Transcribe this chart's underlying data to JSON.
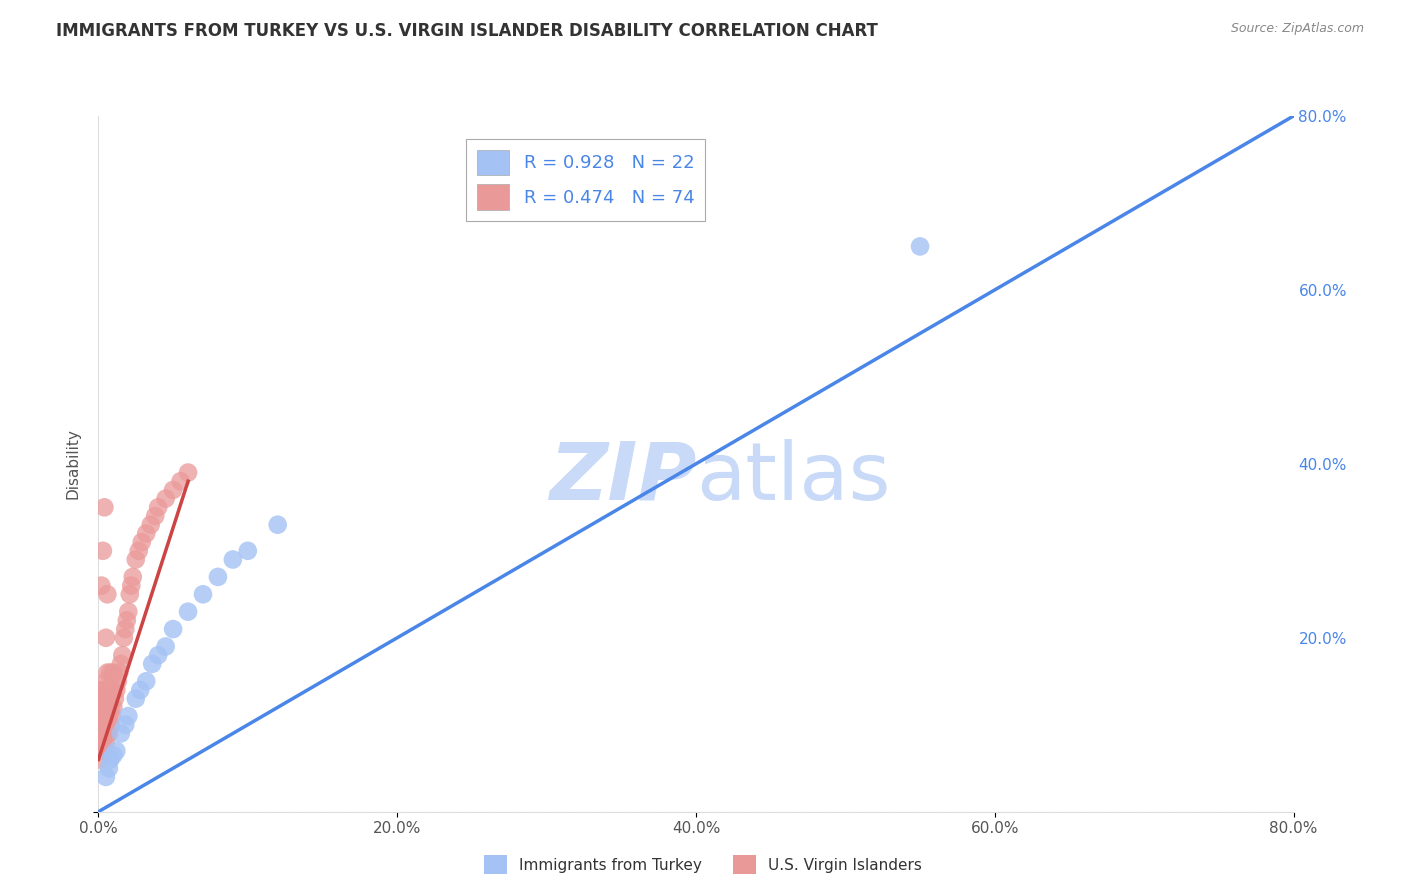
{
  "title": "IMMIGRANTS FROM TURKEY VS U.S. VIRGIN ISLANDER DISABILITY CORRELATION CHART",
  "source": "Source: ZipAtlas.com",
  "ylabel": "Disability",
  "xlim": [
    0,
    0.8
  ],
  "ylim": [
    0,
    0.8
  ],
  "xticks": [
    0.0,
    0.2,
    0.4,
    0.6,
    0.8
  ],
  "yticks": [
    0.0,
    0.2,
    0.4,
    0.6,
    0.8
  ],
  "xticklabels": [
    "0.0%",
    "20.0%",
    "40.0%",
    "60.0%",
    "80.0%"
  ],
  "right_yticklabels": [
    "20.0%",
    "40.0%",
    "60.0%",
    "80.0%"
  ],
  "right_yticks": [
    0.2,
    0.4,
    0.6,
    0.8
  ],
  "blue_R": 0.928,
  "blue_N": 22,
  "pink_R": 0.474,
  "pink_N": 74,
  "blue_color": "#a4c2f4",
  "pink_color": "#ea9999",
  "blue_line_color": "#4a86e8",
  "pink_line_color": "#cc4444",
  "legend_R_color": "#4a86e8",
  "watermark_color": "#c9daf8",
  "blue_scatter_x": [
    0.005,
    0.007,
    0.008,
    0.01,
    0.012,
    0.015,
    0.018,
    0.02,
    0.025,
    0.028,
    0.032,
    0.036,
    0.04,
    0.045,
    0.05,
    0.06,
    0.07,
    0.08,
    0.09,
    0.1,
    0.12,
    0.55
  ],
  "blue_scatter_y": [
    0.04,
    0.05,
    0.06,
    0.065,
    0.07,
    0.09,
    0.1,
    0.11,
    0.13,
    0.14,
    0.15,
    0.17,
    0.18,
    0.19,
    0.21,
    0.23,
    0.25,
    0.27,
    0.29,
    0.3,
    0.33,
    0.65
  ],
  "pink_scatter_x": [
    0.001,
    0.001,
    0.001,
    0.001,
    0.001,
    0.001,
    0.001,
    0.001,
    0.001,
    0.002,
    0.002,
    0.002,
    0.002,
    0.002,
    0.002,
    0.002,
    0.003,
    0.003,
    0.003,
    0.003,
    0.003,
    0.003,
    0.004,
    0.004,
    0.004,
    0.004,
    0.004,
    0.005,
    0.005,
    0.005,
    0.005,
    0.006,
    0.006,
    0.006,
    0.006,
    0.007,
    0.007,
    0.007,
    0.008,
    0.008,
    0.008,
    0.009,
    0.009,
    0.01,
    0.01,
    0.011,
    0.012,
    0.013,
    0.014,
    0.015,
    0.016,
    0.017,
    0.018,
    0.019,
    0.02,
    0.021,
    0.022,
    0.023,
    0.025,
    0.027,
    0.029,
    0.032,
    0.035,
    0.038,
    0.04,
    0.045,
    0.05,
    0.055,
    0.06,
    0.002,
    0.003,
    0.004,
    0.005,
    0.006
  ],
  "pink_scatter_y": [
    0.06,
    0.07,
    0.08,
    0.09,
    0.1,
    0.11,
    0.12,
    0.13,
    0.14,
    0.07,
    0.08,
    0.09,
    0.1,
    0.11,
    0.12,
    0.13,
    0.08,
    0.09,
    0.1,
    0.11,
    0.12,
    0.13,
    0.07,
    0.09,
    0.1,
    0.12,
    0.14,
    0.08,
    0.1,
    0.12,
    0.15,
    0.09,
    0.11,
    0.13,
    0.16,
    0.09,
    0.11,
    0.14,
    0.1,
    0.12,
    0.16,
    0.11,
    0.14,
    0.12,
    0.16,
    0.13,
    0.14,
    0.15,
    0.16,
    0.17,
    0.18,
    0.2,
    0.21,
    0.22,
    0.23,
    0.25,
    0.26,
    0.27,
    0.29,
    0.3,
    0.31,
    0.32,
    0.33,
    0.34,
    0.35,
    0.36,
    0.37,
    0.38,
    0.39,
    0.26,
    0.3,
    0.35,
    0.2,
    0.25
  ],
  "blue_line_x0": 0.0,
  "blue_line_x1": 0.8,
  "blue_line_y0": 0.0,
  "blue_line_y1": 0.8,
  "pink_line_x0": 0.0,
  "pink_line_x1": 0.06,
  "pink_line_y0": 0.06,
  "pink_line_y1": 0.38,
  "diag_line_color": "#cccccc"
}
